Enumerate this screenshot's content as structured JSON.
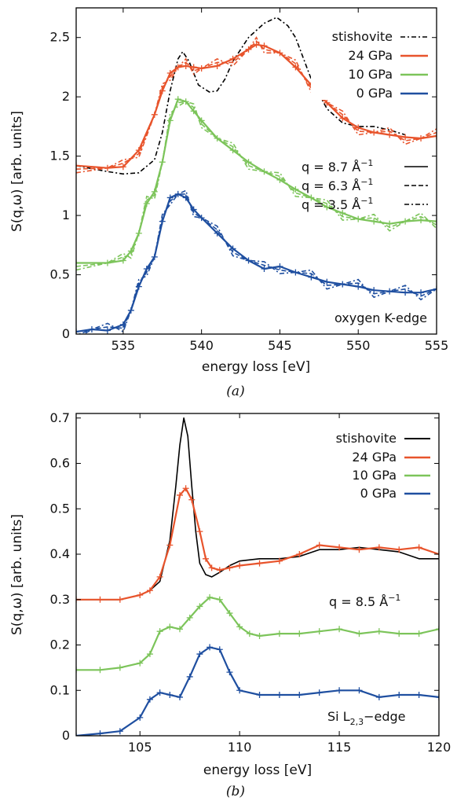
{
  "colors": {
    "stishovite": "#000000",
    "gpa24": "#e8542c",
    "gpa10": "#7cc45a",
    "gpa0": "#1f4fa0"
  },
  "chart_data": [
    {
      "type": "line",
      "caption": "(a)",
      "xlabel": "energy loss [eV]",
      "ylabel": "S(q,ω) [arb. units]",
      "xlim": [
        532,
        555
      ],
      "ylim": [
        0,
        2.75
      ],
      "xticks": [
        "535",
        "540",
        "545",
        "550",
        "555"
      ],
      "yticks": [
        "0",
        "0.5",
        "1",
        "1.5",
        "2",
        "2.5"
      ],
      "annotation": "oxygen K-edge",
      "legend_placement": "top-right",
      "q_legend": [
        {
          "label": "q = 8.7 Å",
          "sup": "−1",
          "style": "solid"
        },
        {
          "label": "q = 6.3 Å",
          "sup": "−1",
          "style": "dashed"
        },
        {
          "label": "q = 3.5 Å",
          "sup": "−1",
          "style": "dash-dot"
        }
      ],
      "series": [
        {
          "name": "stishovite",
          "color": "#000000",
          "style": "dash-dot",
          "x": [
            532,
            534,
            535,
            536,
            537,
            537.5,
            538,
            538.5,
            538.8,
            539.2,
            539.8,
            540.5,
            541,
            541.5,
            542,
            543,
            544,
            544.8,
            545.5,
            546,
            547,
            548,
            549,
            550,
            551,
            552,
            553
          ],
          "y": [
            1.42,
            1.37,
            1.35,
            1.36,
            1.47,
            1.7,
            2.05,
            2.32,
            2.38,
            2.3,
            2.1,
            2.04,
            2.05,
            2.15,
            2.3,
            2.5,
            2.62,
            2.67,
            2.6,
            2.5,
            2.15,
            1.9,
            1.78,
            1.75,
            1.75,
            1.72,
            1.68
          ]
        },
        {
          "name": "24 GPa",
          "color": "#e8542c",
          "style": "solid",
          "x": [
            532,
            534,
            535,
            536,
            537,
            537.5,
            538,
            538.5,
            539,
            539.5,
            540,
            541,
            542,
            543,
            543.5,
            544,
            545,
            546,
            547,
            548,
            549,
            550,
            551,
            552,
            553,
            554,
            555
          ],
          "y": [
            1.42,
            1.4,
            1.41,
            1.55,
            1.85,
            2.05,
            2.2,
            2.25,
            2.26,
            2.25,
            2.24,
            2.26,
            2.32,
            2.4,
            2.44,
            2.43,
            2.37,
            2.25,
            2.1,
            1.95,
            1.82,
            1.74,
            1.7,
            1.68,
            1.66,
            1.65,
            1.67
          ]
        },
        {
          "name": "10 GPa",
          "color": "#7cc45a",
          "style": "solid",
          "x": [
            532,
            534,
            535,
            535.5,
            536,
            536.5,
            537,
            537.5,
            538,
            538.5,
            539,
            539.5,
            540,
            541,
            542,
            543,
            544,
            545,
            546,
            547,
            548,
            549,
            550,
            551,
            552,
            553,
            554,
            555
          ],
          "y": [
            0.6,
            0.6,
            0.62,
            0.7,
            0.85,
            1.1,
            1.2,
            1.45,
            1.8,
            1.98,
            1.96,
            1.88,
            1.8,
            1.65,
            1.55,
            1.45,
            1.37,
            1.3,
            1.22,
            1.15,
            1.07,
            1.02,
            0.97,
            0.95,
            0.93,
            0.95,
            0.96,
            0.95
          ]
        },
        {
          "name": "0 GPa",
          "color": "#1f4fa0",
          "style": "solid",
          "x": [
            532,
            533,
            534,
            535,
            535.5,
            536,
            536.5,
            537,
            537.5,
            538,
            538.5,
            539,
            539.5,
            540,
            541,
            542,
            543,
            544,
            545,
            546,
            547,
            548,
            549,
            550,
            551,
            552,
            553,
            554,
            555
          ],
          "y": [
            0.02,
            0.04,
            0.03,
            0.08,
            0.2,
            0.4,
            0.55,
            0.65,
            0.95,
            1.15,
            1.18,
            1.15,
            1.05,
            0.98,
            0.85,
            0.72,
            0.62,
            0.55,
            0.57,
            0.52,
            0.48,
            0.44,
            0.42,
            0.4,
            0.37,
            0.36,
            0.35,
            0.35,
            0.38
          ]
        }
      ]
    },
    {
      "type": "line",
      "caption": "(b)",
      "xlabel": "energy loss [eV]",
      "ylabel": "S(q,ω) [arb. units]",
      "xlim": [
        101.8,
        120
      ],
      "ylim": [
        0,
        0.71
      ],
      "xticks": [
        "105",
        "110",
        "115",
        "120"
      ],
      "yticks": [
        "0",
        "0.1",
        "0.2",
        "0.3",
        "0.4",
        "0.5",
        "0.6",
        "0.7"
      ],
      "annotation": "Si L",
      "annotation_sub": "2,3",
      "annotation_suffix": "−edge",
      "q_note": "q = 8.5 Å",
      "q_note_sup": "−1",
      "legend_placement": "top-right",
      "series": [
        {
          "name": "stishovite",
          "color": "#000000",
          "style": "solid",
          "x": [
            101.8,
            103,
            104,
            105,
            105.5,
            106,
            106.5,
            106.8,
            107,
            107.2,
            107.4,
            107.6,
            107.8,
            108,
            108.3,
            108.6,
            109,
            109.5,
            110,
            111,
            112,
            113,
            114,
            115,
            116,
            117,
            118,
            119,
            120
          ],
          "y": [
            0.3,
            0.3,
            0.3,
            0.31,
            0.32,
            0.34,
            0.43,
            0.55,
            0.64,
            0.7,
            0.66,
            0.55,
            0.45,
            0.38,
            0.355,
            0.35,
            0.36,
            0.375,
            0.385,
            0.39,
            0.39,
            0.395,
            0.41,
            0.41,
            0.415,
            0.41,
            0.405,
            0.39,
            0.39
          ]
        },
        {
          "name": "24 GPa",
          "color": "#e8542c",
          "style": "solid",
          "x": [
            101.8,
            103,
            104,
            105,
            105.5,
            106,
            106.5,
            107,
            107.3,
            107.6,
            108,
            108.3,
            108.6,
            109,
            109.5,
            110,
            111,
            112,
            113,
            114,
            115,
            116,
            117,
            118,
            119,
            120
          ],
          "y": [
            0.3,
            0.3,
            0.3,
            0.31,
            0.32,
            0.35,
            0.42,
            0.53,
            0.545,
            0.52,
            0.45,
            0.39,
            0.37,
            0.365,
            0.37,
            0.375,
            0.38,
            0.385,
            0.4,
            0.42,
            0.415,
            0.41,
            0.415,
            0.41,
            0.415,
            0.4
          ]
        },
        {
          "name": "10 GPa",
          "color": "#7cc45a",
          "style": "solid",
          "x": [
            101.8,
            103,
            104,
            105,
            105.5,
            106,
            106.5,
            107,
            107.5,
            108,
            108.5,
            109,
            109.5,
            110,
            110.5,
            111,
            112,
            113,
            114,
            115,
            116,
            117,
            118,
            119,
            120
          ],
          "y": [
            0.145,
            0.145,
            0.15,
            0.16,
            0.18,
            0.23,
            0.24,
            0.235,
            0.26,
            0.285,
            0.305,
            0.3,
            0.27,
            0.24,
            0.225,
            0.22,
            0.225,
            0.225,
            0.23,
            0.235,
            0.225,
            0.23,
            0.225,
            0.225,
            0.235
          ]
        },
        {
          "name": "0 GPa",
          "color": "#1f4fa0",
          "style": "solid",
          "x": [
            101.8,
            103,
            104,
            105,
            105.5,
            106,
            106.5,
            107,
            107.5,
            108,
            108.5,
            109,
            109.5,
            110,
            111,
            112,
            113,
            114,
            115,
            116,
            117,
            118,
            119,
            120
          ],
          "y": [
            0.0,
            0.005,
            0.01,
            0.04,
            0.08,
            0.095,
            0.09,
            0.085,
            0.13,
            0.18,
            0.195,
            0.19,
            0.14,
            0.1,
            0.09,
            0.09,
            0.09,
            0.095,
            0.1,
            0.1,
            0.085,
            0.09,
            0.09,
            0.085
          ]
        }
      ]
    }
  ]
}
